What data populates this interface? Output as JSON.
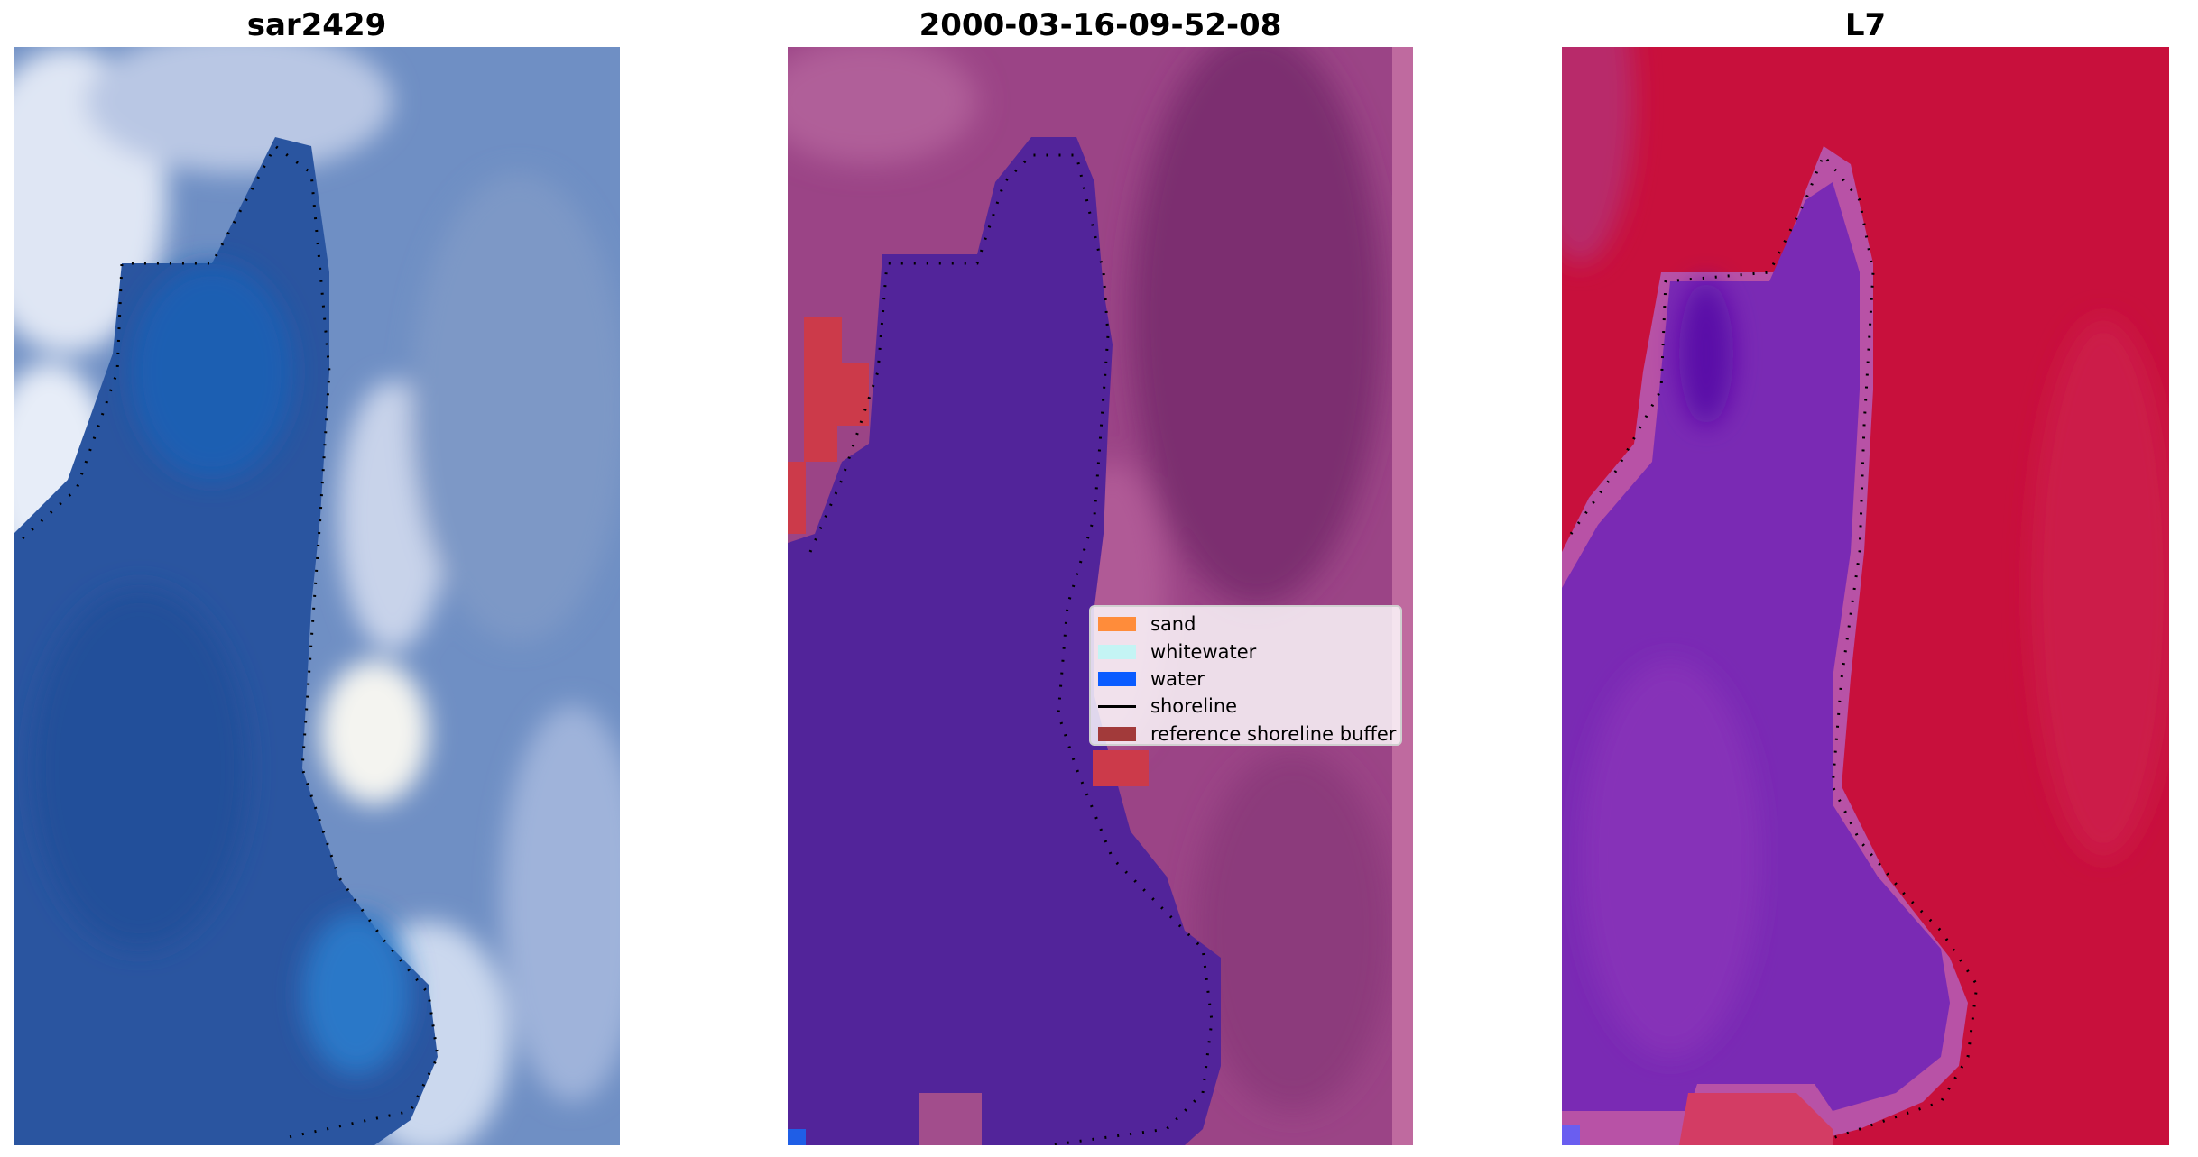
{
  "panels": [
    {
      "title": "sar2429"
    },
    {
      "title": "2000-03-16-09-52-08"
    },
    {
      "title": "L7"
    }
  ],
  "legend": {
    "items": [
      {
        "label": "sand",
        "color": "#ff8c3a",
        "type": "patch"
      },
      {
        "label": "whitewater",
        "color": "#c4f4f4",
        "type": "patch"
      },
      {
        "label": "water",
        "color": "#0a5cff",
        "type": "patch"
      },
      {
        "label": "shoreline",
        "color": "#000000",
        "type": "line"
      },
      {
        "label": "reference shoreline buffer",
        "color": "#a23a3a",
        "type": "patch"
      }
    ]
  },
  "colors": {
    "rgb_water": "#2c5aa0",
    "rgb_land": "#7f9dcc",
    "class_water": "#52249a",
    "class_land": "#9a3f82",
    "class_buffer": "#cc3a4a",
    "index_land": "#c8103c",
    "index_water": "#7a2ab4"
  }
}
